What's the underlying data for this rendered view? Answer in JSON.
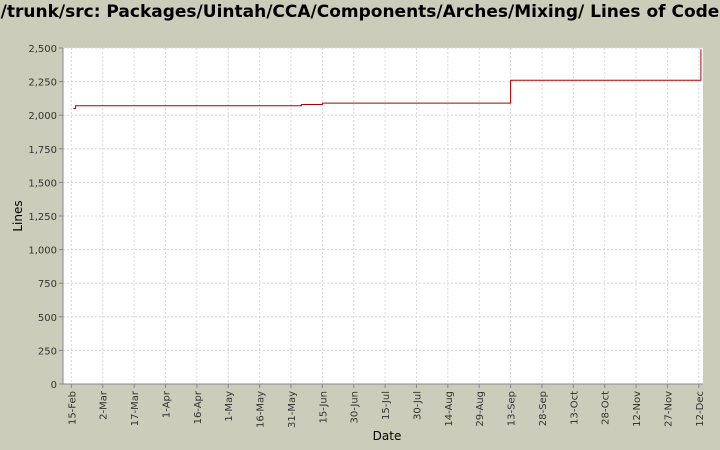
{
  "chart_data": {
    "type": "line",
    "title": "/trunk/src: Packages/Uintah/CCA/Components/Arches/Mixing/ Lines of Code",
    "xlabel": "Date",
    "ylabel": "Lines",
    "ylim": [
      0,
      2500
    ],
    "yticks": [
      0,
      250,
      500,
      750,
      1000,
      1250,
      1500,
      1750,
      2000,
      2250,
      2500
    ],
    "ytick_labels": [
      "0",
      "250",
      "500",
      "750",
      "1,000",
      "1,250",
      "1,500",
      "1,750",
      "2,000",
      "2,250",
      "2,500"
    ],
    "xlim": [
      "2006-02-11",
      "2006-12-14"
    ],
    "xticks": [
      "2006-02-15",
      "2006-03-02",
      "2006-03-17",
      "2006-04-01",
      "2006-04-16",
      "2006-05-01",
      "2006-05-16",
      "2006-05-31",
      "2006-06-15",
      "2006-06-30",
      "2006-07-15",
      "2006-07-30",
      "2006-08-14",
      "2006-08-29",
      "2006-09-13",
      "2006-09-28",
      "2006-10-13",
      "2006-10-28",
      "2006-11-12",
      "2006-11-27",
      "2006-12-12"
    ],
    "xtick_labels": [
      "15-Feb",
      "2-Mar",
      "17-Mar",
      "1-Apr",
      "16-Apr",
      "1-May",
      "16-May",
      "31-May",
      "15-Jun",
      "30-Jun",
      "15-Jul",
      "30-Jul",
      "14-Aug",
      "29-Aug",
      "13-Sep",
      "28-Sep",
      "13-Oct",
      "28-Oct",
      "12-Nov",
      "27-Nov",
      "12-Dec"
    ],
    "grid": true,
    "line_color": "#aa0000",
    "series": [
      {
        "step": true,
        "points": [
          {
            "x": "2006-02-16",
            "y": 2050
          },
          {
            "x": "2006-02-17",
            "y": 2070
          },
          {
            "x": "2006-06-05",
            "y": 2080
          },
          {
            "x": "2006-06-15",
            "y": 2090
          },
          {
            "x": "2006-09-13",
            "y": 2260
          },
          {
            "x": "2006-12-13",
            "y": 2490
          }
        ]
      }
    ]
  }
}
